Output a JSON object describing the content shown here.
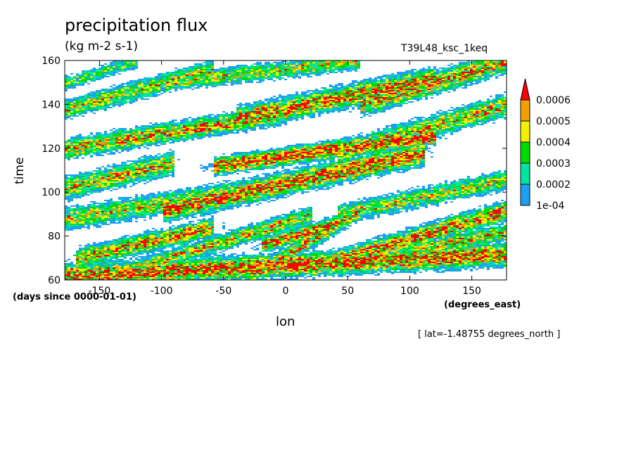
{
  "chart_data": {
    "type": "heatmap",
    "title": "precipitation flux",
    "units": "(kg m-2 s-1)",
    "run_label": "T39L48_ksc_1keq",
    "xlabel": "lon",
    "ylabel": "time",
    "x_units": "(degrees_east)",
    "y_units": "(days since 0000-01-01)",
    "annotation": "[ lat=-1.48755 degrees_north ]",
    "xlim": [
      -178,
      178
    ],
    "ylim": [
      60,
      160
    ],
    "x_ticks": [
      -150,
      -100,
      -50,
      0,
      50,
      100,
      150
    ],
    "x_tick_labels": [
      "-150",
      "-100",
      "-50",
      "0",
      "50",
      "100",
      "150"
    ],
    "y_ticks": [
      60,
      80,
      100,
      120,
      140,
      160
    ],
    "y_tick_labels": [
      "60",
      "80",
      "100",
      "120",
      "140",
      "160"
    ],
    "grid": false,
    "legend": "colorbar-right",
    "levels": [
      0.0001,
      0.0002,
      0.0003,
      0.0004,
      0.0005,
      0.0006
    ],
    "level_labels": [
      "1e-04",
      "0.0002",
      "0.0003",
      "0.0004",
      "0.0005",
      "0.0006"
    ],
    "colors": [
      "#1ea0f0",
      "#00e6a0",
      "#00dc00",
      "#f0f000",
      "#f0a000",
      "#ff0000"
    ],
    "bands": [
      {
        "lon0": -178,
        "t0": 62,
        "lon1": 178,
        "t1": 72,
        "w": 4.0,
        "s": 0.9
      },
      {
        "lon0": -170,
        "t0": 70,
        "lon1": -60,
        "t1": 84,
        "w": 3.5,
        "s": 0.8
      },
      {
        "lon0": -120,
        "t0": 66,
        "lon1": 20,
        "t1": 90,
        "w": 3.0,
        "s": 0.75
      },
      {
        "lon0": -30,
        "t0": 62,
        "lon1": 60,
        "t1": 92,
        "w": 3.0,
        "s": 0.8
      },
      {
        "lon0": 20,
        "t0": 66,
        "lon1": 178,
        "t1": 92,
        "w": 3.5,
        "s": 0.85
      },
      {
        "lon0": -178,
        "t0": 88,
        "lon1": 0,
        "t1": 104,
        "w": 4.0,
        "s": 0.7
      },
      {
        "lon0": -100,
        "t0": 92,
        "lon1": 110,
        "t1": 118,
        "w": 4.0,
        "s": 0.9
      },
      {
        "lon0": 40,
        "t0": 90,
        "lon1": 178,
        "t1": 106,
        "w": 3.5,
        "s": 0.7
      },
      {
        "lon0": -178,
        "t0": 102,
        "lon1": -90,
        "t1": 114,
        "w": 4.0,
        "s": 0.75
      },
      {
        "lon0": -178,
        "t0": 120,
        "lon1": 0,
        "t1": 136,
        "w": 3.5,
        "s": 0.8
      },
      {
        "lon0": -60,
        "t0": 112,
        "lon1": 120,
        "t1": 126,
        "w": 3.0,
        "s": 0.95
      },
      {
        "lon0": 40,
        "t0": 118,
        "lon1": 178,
        "t1": 140,
        "w": 4.0,
        "s": 0.75
      },
      {
        "lon0": -178,
        "t0": 138,
        "lon1": -60,
        "t1": 156,
        "w": 3.5,
        "s": 0.7
      },
      {
        "lon0": -40,
        "t0": 134,
        "lon1": 120,
        "t1": 152,
        "w": 4.0,
        "s": 0.85
      },
      {
        "lon0": 60,
        "t0": 140,
        "lon1": 178,
        "t1": 160,
        "w": 4.0,
        "s": 0.8
      },
      {
        "lon0": -100,
        "t0": 150,
        "lon1": 60,
        "t1": 160,
        "w": 3.0,
        "s": 0.7
      },
      {
        "lon0": -178,
        "t0": 150,
        "lon1": -120,
        "t1": 160,
        "w": 2.5,
        "s": 0.6
      },
      {
        "lon0": 100,
        "t0": 74,
        "lon1": 178,
        "t1": 82,
        "w": 3.0,
        "s": 0.75
      },
      {
        "lon0": -20,
        "t0": 76,
        "lon1": 40,
        "t1": 86,
        "w": 2.5,
        "s": 0.9
      }
    ]
  }
}
